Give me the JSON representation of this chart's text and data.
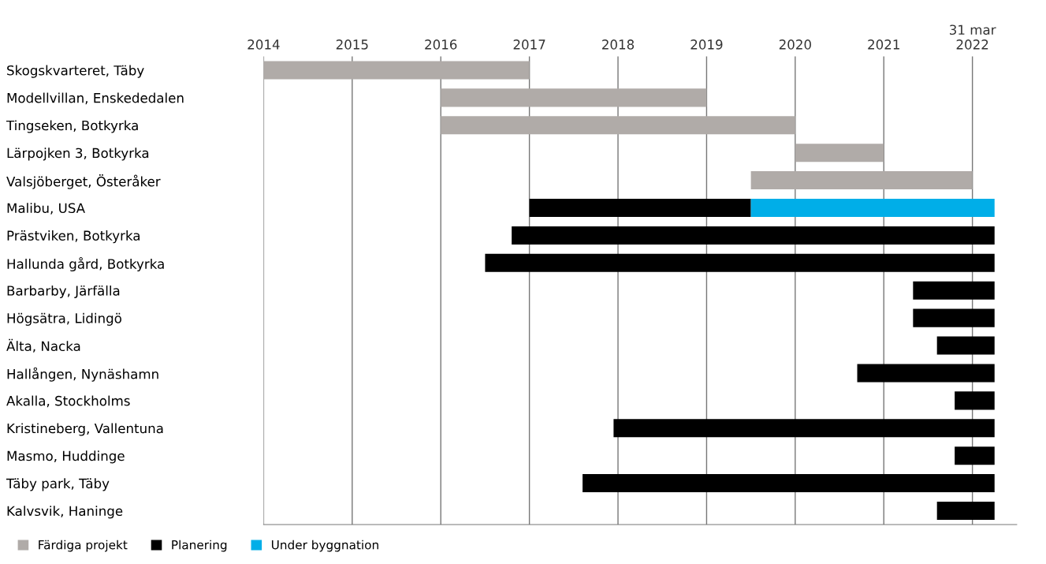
{
  "chart_data": {
    "type": "bar",
    "orientation": "horizontal",
    "categories": [
      "Skogskvarteret, Täby",
      "Modellvillan, Enskededalen",
      "Tingseken, Botkyrka",
      "Lärpojken 3, Botkyrka",
      "Valsjöberget, Österåker",
      "Malibu, USA",
      "Prästviken, Botkyrka",
      "Hallunda gård, Botkyrka",
      "Barbarby, Järfälla",
      "Högsätra, Lidingö",
      "Älta, Nacka",
      "Hallången, Nynäshamn",
      "Akalla, Stockholms",
      "Kristineberg, Vallentuna",
      "Masmo, Huddinge",
      "Täby park, Täby",
      "Kalvsvik, Haninge"
    ],
    "series": [
      {
        "name": "Färdiga projekt",
        "color": "#b0aba8",
        "base": [
          2014,
          2016,
          2016,
          2020,
          2019.5,
          null,
          null,
          null,
          null,
          null,
          null,
          null,
          null,
          null,
          null,
          null,
          null
        ],
        "values": [
          3,
          3,
          4,
          1,
          2.5,
          null,
          null,
          null,
          null,
          null,
          null,
          null,
          null,
          null,
          null,
          null,
          null
        ]
      },
      {
        "name": "Planering",
        "color": "#000000",
        "base": [
          null,
          null,
          null,
          null,
          null,
          2017,
          2016.8,
          2016.5,
          2021.33,
          2021.33,
          2021.6,
          2020.7,
          2021.8,
          2017.95,
          2021.8,
          2017.6,
          2021.6
        ],
        "values": [
          null,
          null,
          null,
          null,
          null,
          2.5,
          5.45,
          5.75,
          0.92,
          0.92,
          0.65,
          1.55,
          0.45,
          4.3,
          0.45,
          4.65,
          0.65
        ]
      },
      {
        "name": "Under byggnation",
        "color": "#00aee8",
        "base": [
          null,
          null,
          null,
          null,
          null,
          2019.5,
          null,
          null,
          null,
          null,
          null,
          null,
          null,
          null,
          null,
          null,
          null
        ],
        "values": [
          null,
          null,
          null,
          null,
          null,
          2.75,
          null,
          null,
          null,
          null,
          null,
          null,
          null,
          null,
          null,
          null,
          null
        ]
      }
    ],
    "xlim": [
      2014,
      2022.5
    ],
    "xticks": [
      2014,
      2015,
      2016,
      2017,
      2018,
      2019,
      2020,
      2021,
      {
        "value": 2022,
        "label": "31 mar\n2022"
      }
    ],
    "grid": "x",
    "legend": "bottom left"
  }
}
